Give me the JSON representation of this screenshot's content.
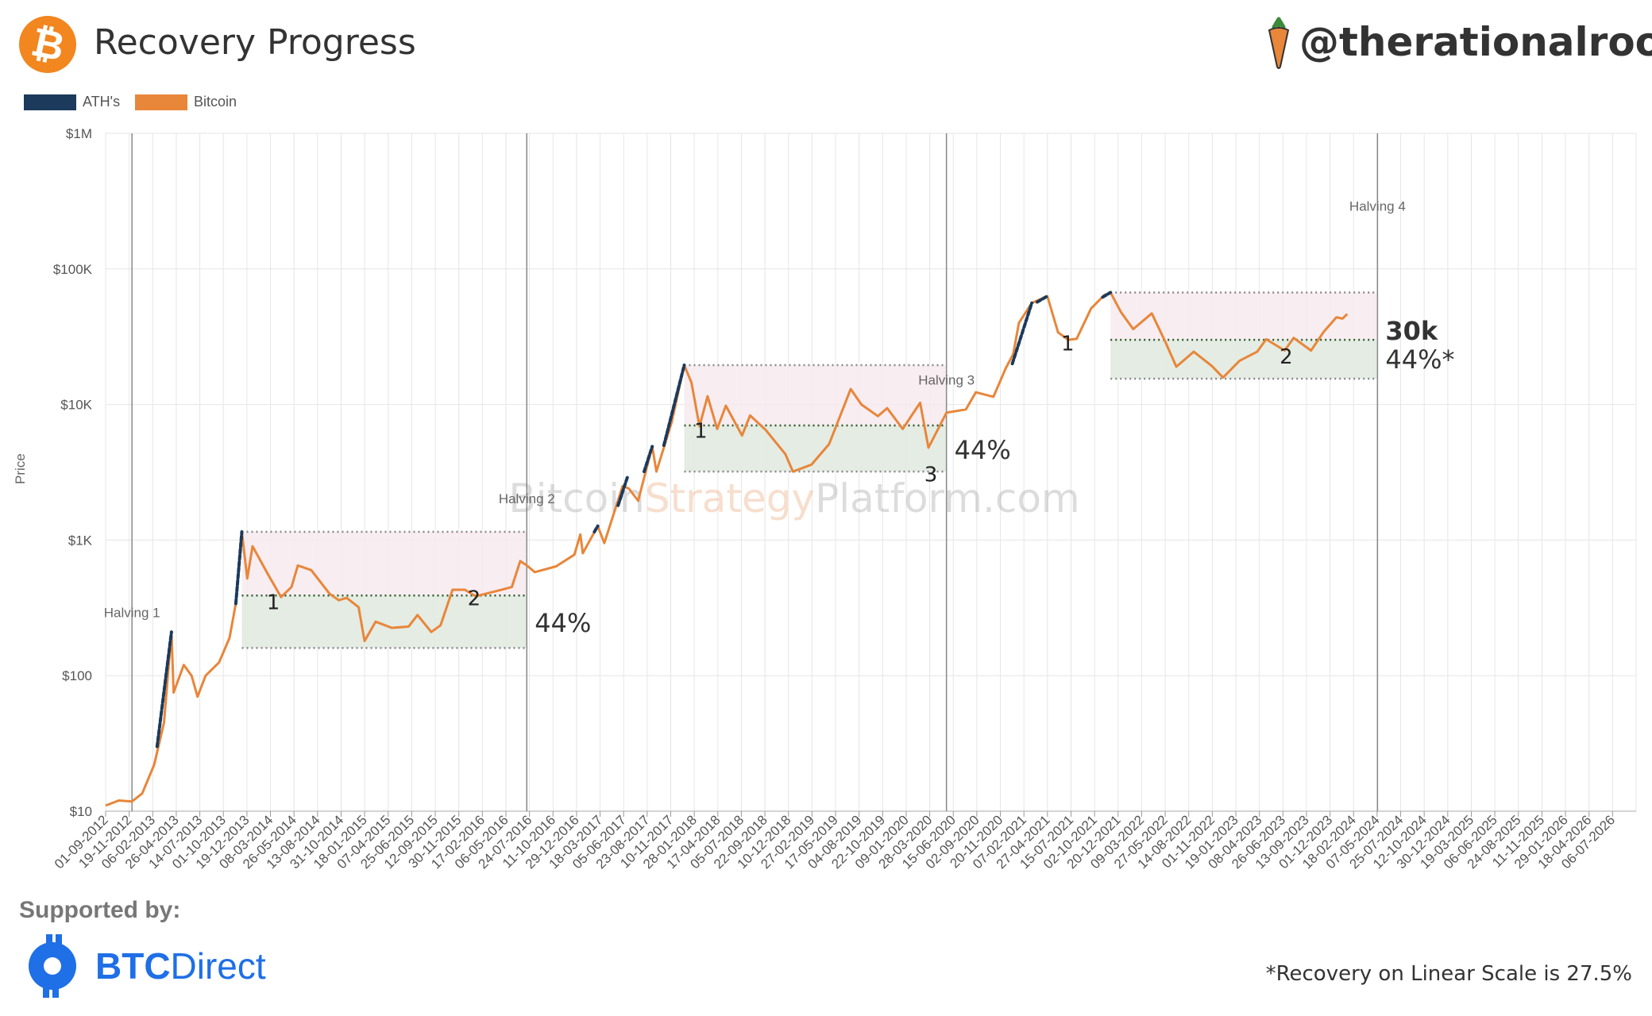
{
  "header": {
    "title": "Recovery Progress",
    "handle": "@therationalroot",
    "logo_icon": "bitcoin-icon"
  },
  "legend": [
    {
      "label": "ATH's",
      "color": "#1b3a5c"
    },
    {
      "label": "Bitcoin",
      "color": "#e8863a"
    }
  ],
  "footer": {
    "supported_by": "Supported by:",
    "sponsor_bold": "BTC",
    "sponsor_rest": "Direct",
    "footnote": "*Recovery on Linear Scale is 27.5%"
  },
  "chart_data": {
    "type": "line",
    "title": "Recovery Progress",
    "ylabel": "Price",
    "yscale": "log",
    "ylim": [
      10,
      1000000
    ],
    "y_ticks": [
      {
        "value": 10,
        "label": "$10"
      },
      {
        "value": 100,
        "label": "$100"
      },
      {
        "value": 1000,
        "label": "$1K"
      },
      {
        "value": 10000,
        "label": "$10K"
      },
      {
        "value": 100000,
        "label": "$100K"
      },
      {
        "value": 1000000,
        "label": "$1M"
      }
    ],
    "x_start": "2012-09-01",
    "x_end": "2026-09-01",
    "x_tick_labels": [
      "01-09-2012",
      "19-11-2012",
      "06-02-2013",
      "26-04-2013",
      "14-07-2013",
      "01-10-2013",
      "19-12-2013",
      "08-03-2014",
      "26-05-2014",
      "13-08-2014",
      "31-10-2014",
      "18-01-2015",
      "07-04-2015",
      "25-06-2015",
      "12-09-2015",
      "30-11-2015",
      "17-02-2016",
      "06-05-2016",
      "24-07-2016",
      "11-10-2016",
      "29-12-2016",
      "18-03-2017",
      "05-06-2017",
      "23-08-2017",
      "10-11-2017",
      "28-01-2018",
      "17-04-2018",
      "05-07-2018",
      "22-09-2018",
      "10-12-2018",
      "27-02-2019",
      "17-05-2019",
      "04-08-2019",
      "22-10-2019",
      "09-01-2020",
      "28-03-2020",
      "15-06-2020",
      "02-09-2020",
      "20-11-2020",
      "07-02-2021",
      "27-04-2021",
      "15-07-2021",
      "02-10-2021",
      "20-12-2021",
      "09-03-2022",
      "27-05-2022",
      "14-08-2022",
      "01-11-2022",
      "19-01-2023",
      "08-04-2023",
      "26-06-2023",
      "13-09-2023",
      "01-12-2023",
      "18-02-2024",
      "07-05-2024",
      "25-07-2024",
      "12-10-2024",
      "30-12-2024",
      "19-03-2025",
      "06-06-2025",
      "24-08-2025",
      "11-11-2025",
      "29-01-2026",
      "18-04-2026",
      "06-07-2026"
    ],
    "halvings": [
      {
        "label": "Halving 1",
        "date": "2012-11-28"
      },
      {
        "label": "Halving 2",
        "date": "2016-07-09"
      },
      {
        "label": "Halving 3",
        "date": "2020-05-11"
      },
      {
        "label": "Halving 4",
        "date": "2024-04-20"
      }
    ],
    "recovery_zones": [
      {
        "start": "2013-11-30",
        "end": "2016-07-09",
        "ath": 1150,
        "level": 390,
        "low": 160,
        "label": "44%"
      },
      {
        "start": "2017-12-17",
        "end": "2020-05-11",
        "ath": 19500,
        "level": 7000,
        "low": 3200,
        "label": "44%"
      },
      {
        "start": "2021-11-10",
        "end": "2024-04-20",
        "ath": 67000,
        "level": 30000,
        "low": 15500,
        "label": "44%*",
        "level_label": "30k"
      }
    ],
    "retest_markers": [
      {
        "label": "1",
        "date": "2014-03-15",
        "price": 310
      },
      {
        "label": "2",
        "date": "2016-01-15",
        "price": 330
      },
      {
        "label": "1",
        "date": "2018-02-10",
        "price": 5700
      },
      {
        "label": "3",
        "date": "2020-03-20",
        "price": 2700
      },
      {
        "label": "1",
        "date": "2021-06-20",
        "price": 25000
      },
      {
        "label": "2",
        "date": "2023-06-20",
        "price": 20000
      }
    ],
    "series": [
      {
        "name": "Bitcoin",
        "color": "#e8863a",
        "points": [
          [
            "2012-09-01",
            11
          ],
          [
            "2012-10-15",
            12
          ],
          [
            "2012-11-28",
            11.8
          ],
          [
            "2013-01-01",
            13.5
          ],
          [
            "2013-02-10",
            22
          ],
          [
            "2013-03-15",
            45
          ],
          [
            "2013-04-09",
            210
          ],
          [
            "2013-04-16",
            75
          ],
          [
            "2013-05-20",
            120
          ],
          [
            "2013-06-15",
            100
          ],
          [
            "2013-07-05",
            70
          ],
          [
            "2013-08-01",
            100
          ],
          [
            "2013-09-15",
            125
          ],
          [
            "2013-10-20",
            190
          ],
          [
            "2013-11-10",
            340
          ],
          [
            "2013-11-30",
            1150
          ],
          [
            "2013-12-18",
            520
          ],
          [
            "2014-01-05",
            900
          ],
          [
            "2014-02-25",
            560
          ],
          [
            "2014-04-10",
            380
          ],
          [
            "2014-05-15",
            450
          ],
          [
            "2014-06-05",
            650
          ],
          [
            "2014-07-20",
            600
          ],
          [
            "2014-09-20",
            400
          ],
          [
            "2014-10-20",
            360
          ],
          [
            "2014-11-15",
            375
          ],
          [
            "2014-12-25",
            320
          ],
          [
            "2015-01-14",
            180
          ],
          [
            "2015-02-20",
            250
          ],
          [
            "2015-04-15",
            225
          ],
          [
            "2015-06-10",
            230
          ],
          [
            "2015-07-10",
            280
          ],
          [
            "2015-08-25",
            210
          ],
          [
            "2015-09-25",
            235
          ],
          [
            "2015-11-04",
            430
          ],
          [
            "2015-12-15",
            430
          ],
          [
            "2016-01-20",
            385
          ],
          [
            "2016-03-20",
            415
          ],
          [
            "2016-05-20",
            450
          ],
          [
            "2016-06-17",
            700
          ],
          [
            "2016-07-09",
            650
          ],
          [
            "2016-08-05",
            580
          ],
          [
            "2016-10-15",
            640
          ],
          [
            "2016-12-15",
            780
          ],
          [
            "2017-01-04",
            1100
          ],
          [
            "2017-01-12",
            800
          ],
          [
            "2017-03-03",
            1270
          ],
          [
            "2017-03-25",
            950
          ],
          [
            "2017-05-25",
            2500
          ],
          [
            "2017-06-15",
            2400
          ],
          [
            "2017-07-16",
            1950
          ],
          [
            "2017-09-01",
            4900
          ],
          [
            "2017-09-15",
            3200
          ],
          [
            "2017-11-05",
            7400
          ],
          [
            "2017-12-17",
            19500
          ],
          [
            "2018-01-10",
            14500
          ],
          [
            "2018-02-06",
            6900
          ],
          [
            "2018-03-05",
            11500
          ],
          [
            "2018-04-06",
            6600
          ],
          [
            "2018-05-05",
            9800
          ],
          [
            "2018-06-28",
            5900
          ],
          [
            "2018-07-25",
            8300
          ],
          [
            "2018-09-15",
            6500
          ],
          [
            "2018-11-20",
            4300
          ],
          [
            "2018-12-15",
            3200
          ],
          [
            "2019-02-15",
            3600
          ],
          [
            "2019-04-15",
            5100
          ],
          [
            "2019-06-26",
            13000
          ],
          [
            "2019-08-01",
            10000
          ],
          [
            "2019-09-25",
            8200
          ],
          [
            "2019-10-26",
            9400
          ],
          [
            "2019-12-17",
            6600
          ],
          [
            "2020-02-13",
            10300
          ],
          [
            "2020-03-12",
            4800
          ],
          [
            "2020-05-11",
            8700
          ],
          [
            "2020-07-15",
            9200
          ],
          [
            "2020-08-17",
            12300
          ],
          [
            "2020-10-15",
            11400
          ],
          [
            "2020-11-25",
            18500
          ],
          [
            "2020-12-20",
            23500
          ],
          [
            "2021-01-08",
            40000
          ],
          [
            "2021-02-20",
            56000
          ],
          [
            "2021-04-13",
            63000
          ],
          [
            "2021-05-19",
            34000
          ],
          [
            "2021-06-22",
            30000
          ],
          [
            "2021-07-20",
            30500
          ],
          [
            "2021-09-06",
            51000
          ],
          [
            "2021-10-20",
            64000
          ],
          [
            "2021-11-10",
            67000
          ],
          [
            "2021-12-15",
            48000
          ],
          [
            "2022-01-25",
            36000
          ],
          [
            "2022-03-28",
            47000
          ],
          [
            "2022-05-12",
            29000
          ],
          [
            "2022-06-18",
            19000
          ],
          [
            "2022-08-15",
            24500
          ],
          [
            "2022-10-15",
            19200
          ],
          [
            "2022-11-21",
            15800
          ],
          [
            "2023-01-15",
            21000
          ],
          [
            "2023-03-15",
            24500
          ],
          [
            "2023-04-14",
            30300
          ],
          [
            "2023-06-15",
            25000
          ],
          [
            "2023-07-15",
            31000
          ],
          [
            "2023-09-11",
            25000
          ],
          [
            "2023-10-24",
            34500
          ],
          [
            "2023-12-05",
            44000
          ],
          [
            "2023-12-25",
            43000
          ],
          [
            "2024-01-10",
            46500
          ]
        ]
      },
      {
        "name": "ATH's",
        "color": "#1b3a5c",
        "segments": [
          [
            [
              "2013-02-20",
              30
            ],
            [
              "2013-04-09",
              210
            ]
          ],
          [
            [
              "2013-11-10",
              340
            ],
            [
              "2013-11-30",
              1150
            ]
          ],
          [
            [
              "2017-02-20",
              1150
            ],
            [
              "2017-03-03",
              1270
            ]
          ],
          [
            [
              "2017-05-10",
              1800
            ],
            [
              "2017-06-10",
              2900
            ]
          ],
          [
            [
              "2017-08-05",
              3200
            ],
            [
              "2017-09-01",
              4900
            ]
          ],
          [
            [
              "2017-10-10",
              5000
            ],
            [
              "2017-12-17",
              19500
            ]
          ],
          [
            [
              "2020-12-17",
              20000
            ],
            [
              "2021-02-20",
              56000
            ]
          ],
          [
            [
              "2021-03-10",
              57000
            ],
            [
              "2021-04-13",
              63000
            ]
          ],
          [
            [
              "2021-10-15",
              62000
            ],
            [
              "2021-11-10",
              67000
            ]
          ]
        ]
      }
    ]
  }
}
